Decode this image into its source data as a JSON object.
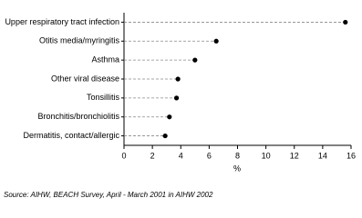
{
  "chart_data": {
    "type": "dot",
    "categories": [
      "Upper respiratory tract infection",
      "Otitis media/myringitis",
      "Asthma",
      "Other viral disease",
      "Tonsillitis",
      "Bronchitis/bronchiolitis",
      "Dermatitis, contact/allergic"
    ],
    "values": [
      15.6,
      6.5,
      5.0,
      3.8,
      3.7,
      3.2,
      2.9
    ],
    "color": "#000000",
    "xlim": [
      0,
      16
    ],
    "xticks": [
      0,
      2,
      4,
      6,
      8,
      10,
      12,
      14,
      16
    ],
    "x_label": "%",
    "source": "Source: AIHW, BEACH Survey, April - March 2001 in AIHW 2002"
  }
}
